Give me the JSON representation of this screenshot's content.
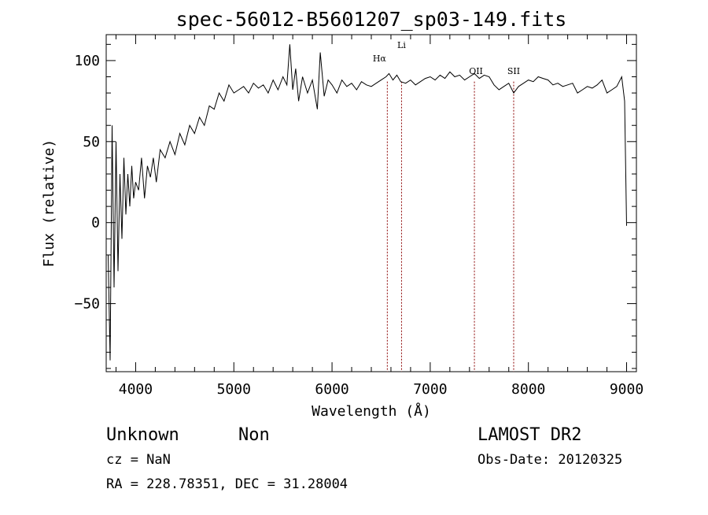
{
  "chart_data": {
    "type": "line",
    "title": "spec-56012-B5601207_sp03-149.fits",
    "xlabel": "Wavelength (Å)",
    "ylabel": "Flux (relative)",
    "xlim": [
      3700,
      9100
    ],
    "ylim": [
      -92,
      116
    ],
    "x_ticks": [
      4000,
      5000,
      6000,
      7000,
      8000,
      9000
    ],
    "y_ticks": [
      -50,
      0,
      50,
      100
    ],
    "grid": false,
    "colors": {
      "spectrum": "#000000",
      "marker": "#8b0000"
    },
    "series": [
      {
        "x": [
          3720,
          3740,
          3760,
          3780,
          3800,
          3820,
          3840,
          3860,
          3880,
          3900,
          3920,
          3940,
          3960,
          3980,
          4000,
          4030,
          4060,
          4090,
          4120,
          4150,
          4180,
          4210,
          4250,
          4300,
          4350,
          4400,
          4450,
          4500,
          4550,
          4600,
          4650,
          4700,
          4750,
          4800,
          4850,
          4900,
          4950,
          5000,
          5050,
          5100,
          5150,
          5200,
          5250,
          5300,
          5350,
          5400,
          5450,
          5500,
          5540,
          5570,
          5600,
          5630,
          5660,
          5700,
          5750,
          5800,
          5850,
          5880,
          5920,
          5960,
          6000,
          6050,
          6100,
          6150,
          6200,
          6250,
          6300,
          6350,
          6400,
          6450,
          6500,
          6550,
          6580,
          6620,
          6660,
          6700,
          6750,
          6800,
          6850,
          6900,
          6950,
          7000,
          7050,
          7100,
          7150,
          7200,
          7250,
          7300,
          7350,
          7400,
          7450,
          7500,
          7550,
          7600,
          7650,
          7700,
          7750,
          7800,
          7850,
          7900,
          7950,
          8000,
          8050,
          8100,
          8150,
          8200,
          8250,
          8300,
          8350,
          8400,
          8450,
          8500,
          8550,
          8600,
          8650,
          8700,
          8750,
          8800,
          8850,
          8900,
          8950,
          8980,
          9000
        ],
        "y": [
          -20,
          -85,
          60,
          -40,
          50,
          -30,
          30,
          -10,
          40,
          5,
          30,
          10,
          35,
          15,
          25,
          20,
          40,
          15,
          35,
          28,
          40,
          25,
          45,
          40,
          50,
          42,
          55,
          48,
          60,
          55,
          65,
          60,
          72,
          70,
          80,
          75,
          85,
          80,
          82,
          84,
          80,
          86,
          83,
          85,
          80,
          88,
          82,
          90,
          85,
          110,
          82,
          95,
          75,
          90,
          80,
          88,
          70,
          105,
          78,
          88,
          85,
          80,
          88,
          84,
          86,
          82,
          87,
          85,
          84,
          86,
          88,
          90,
          92,
          88,
          91,
          87,
          86,
          88,
          85,
          87,
          89,
          90,
          88,
          91,
          89,
          93,
          90,
          91,
          88,
          90,
          92,
          89,
          91,
          90,
          85,
          82,
          84,
          86,
          80,
          84,
          86,
          88,
          87,
          90,
          89,
          88,
          85,
          86,
          84,
          85,
          86,
          80,
          82,
          84,
          83,
          85,
          88,
          80,
          82,
          84,
          90,
          75,
          -2
        ]
      }
    ],
    "annotations": [
      {
        "label": "Hα",
        "x": 6563
      },
      {
        "label": "Li",
        "x": 6708
      },
      {
        "label": "OII",
        "x": 7450
      },
      {
        "label": "SII",
        "x": 7850
      }
    ]
  },
  "footer": {
    "class_label": "Unknown",
    "subclass_label": "Non",
    "redshift": "cz = NaN",
    "coords": "RA = 228.78351, DEC =  31.28004",
    "survey": "LAMOST DR2",
    "obs_date": "Obs-Date: 20120325"
  }
}
